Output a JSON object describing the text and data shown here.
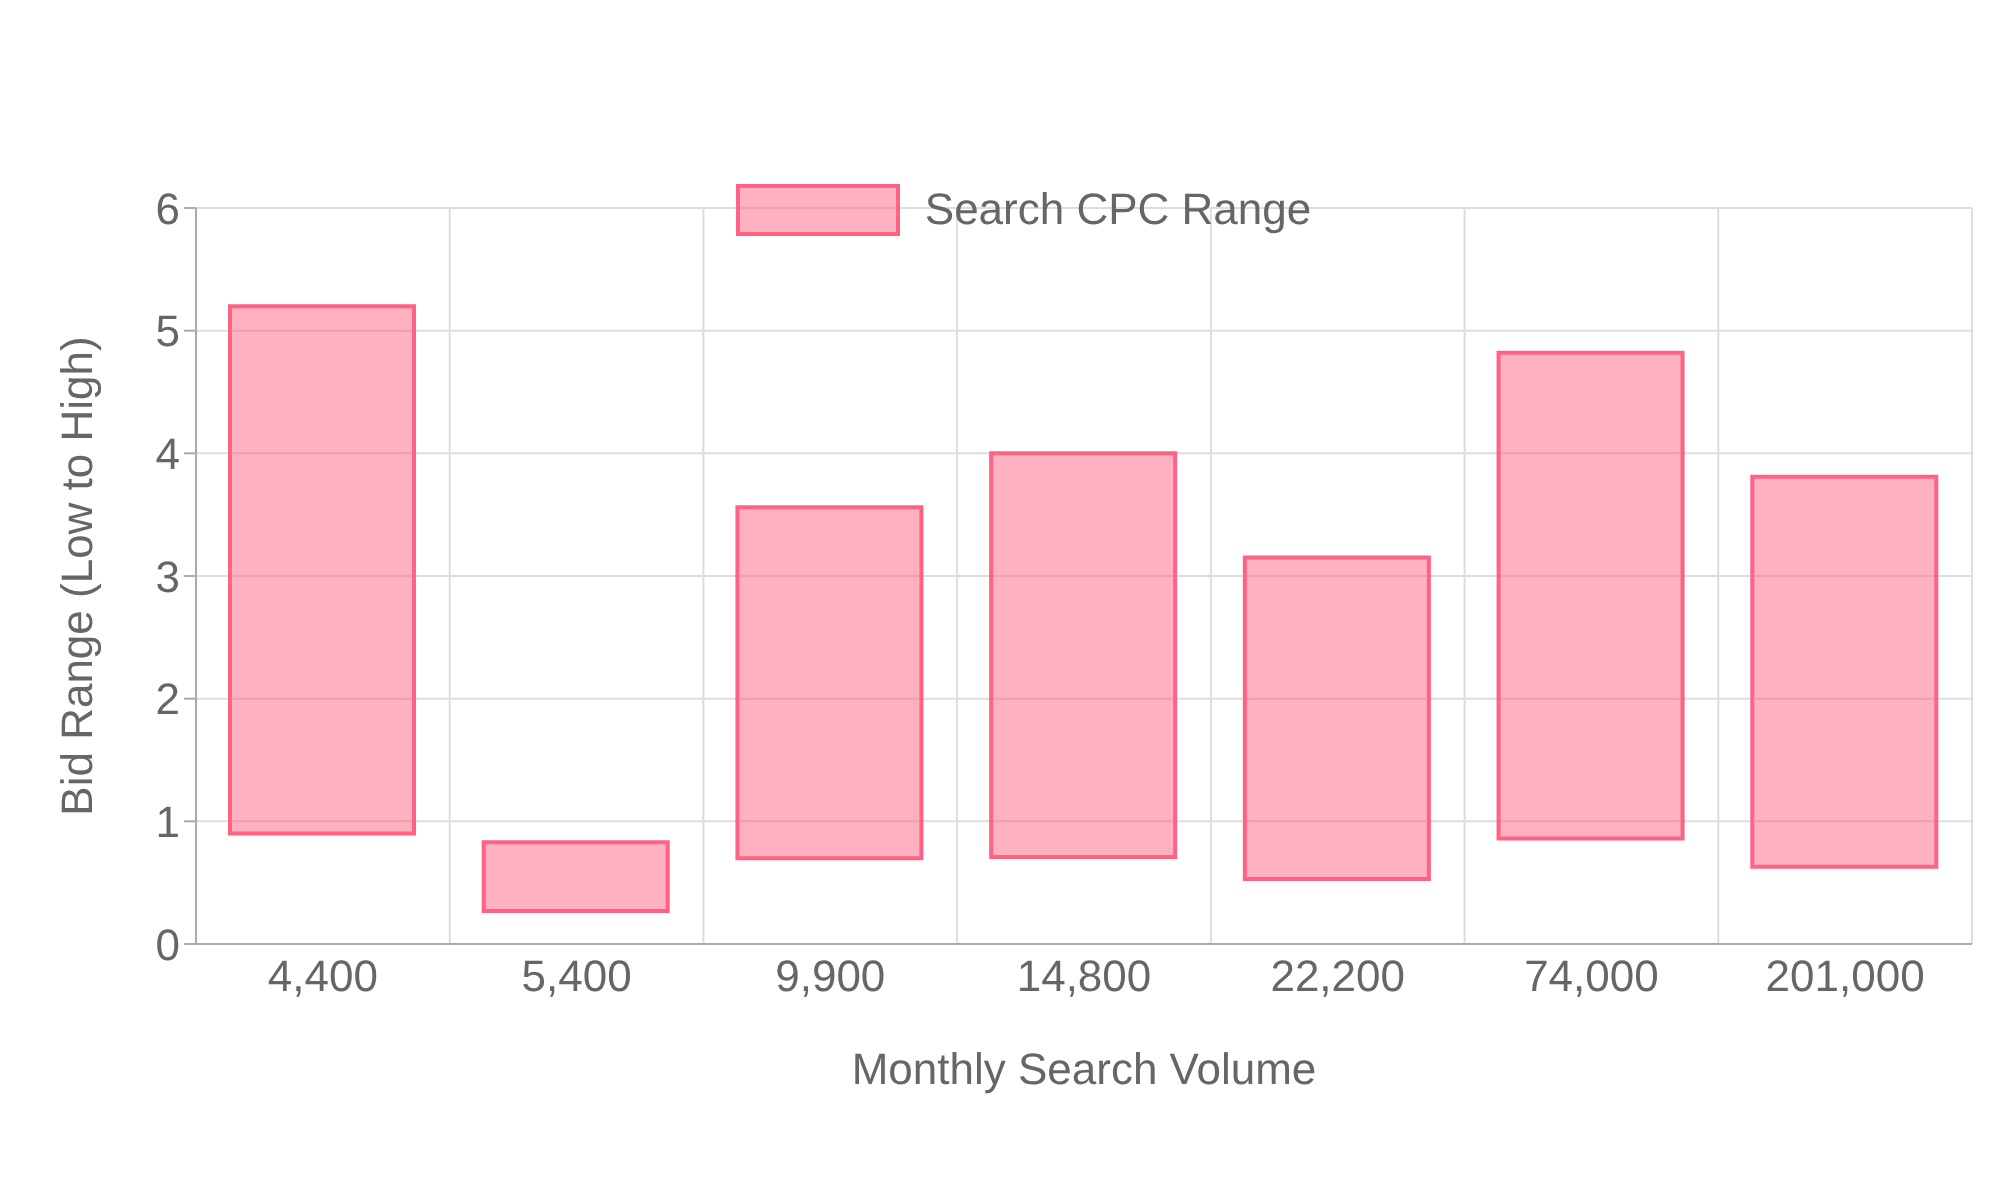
{
  "chart_data": {
    "type": "bar",
    "categories": [
      "4,400",
      "5,400",
      "9,900",
      "14,800",
      "22,200",
      "74,000",
      "201,000"
    ],
    "series": [
      {
        "name": "Search CPC Range",
        "color": "#ff6384",
        "values": [
          4.3,
          0.56,
          2.86,
          3.29,
          2.62,
          3.96,
          3.18
        ],
        "base": [
          0.9,
          0.27,
          0.7,
          0.71,
          0.53,
          0.86,
          0.63
        ]
      }
    ],
    "xlabel": "Monthly Search Volume",
    "ylabel": "Bid Range (Low to High)",
    "ylim": [
      0,
      6
    ],
    "yticks": [
      0,
      1,
      2,
      3,
      4,
      5,
      6
    ],
    "grid": true,
    "legend": "top"
  }
}
